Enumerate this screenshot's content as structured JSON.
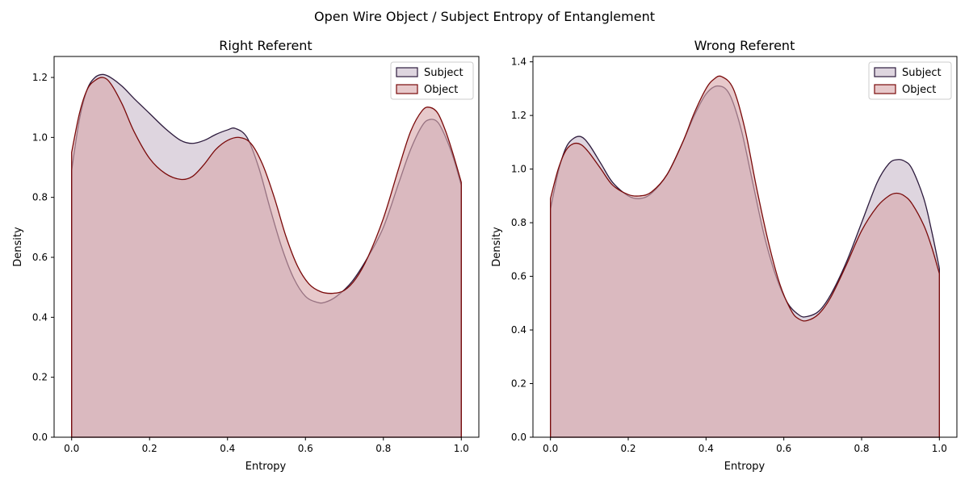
{
  "figure": {
    "title": "Open Wire Object / Subject Entropy of Entanglement"
  },
  "colors": {
    "subject_line": "#2d1b3d",
    "subject_fill": "#c9bccb",
    "object_line": "#7a0a0a",
    "object_fill": "#d9a8ab",
    "overlap_fill": "#b59499"
  },
  "chart_data": [
    {
      "type": "area",
      "title": "Right Referent",
      "xlabel": "Entropy",
      "ylabel": "Density",
      "xlim": [
        0.0,
        1.0
      ],
      "ylim": [
        0.0,
        1.27
      ],
      "xticks": [
        0.0,
        0.2,
        0.4,
        0.6,
        0.8,
        1.0
      ],
      "xtick_labels": [
        "0.0",
        "0.2",
        "0.4",
        "0.6",
        "0.8",
        "1.0"
      ],
      "yticks": [
        0.0,
        0.2,
        0.4,
        0.6,
        0.8,
        1.0,
        1.2
      ],
      "ytick_labels": [
        "0.0",
        "0.2",
        "0.4",
        "0.6",
        "0.8",
        "1.0",
        "1.2"
      ],
      "legend": "top-right",
      "grid": false,
      "series": [
        {
          "name": "Subject",
          "x": [
            0.0,
            0.02,
            0.04,
            0.06,
            0.08,
            0.1,
            0.13,
            0.16,
            0.2,
            0.24,
            0.28,
            0.31,
            0.34,
            0.37,
            0.4,
            0.42,
            0.45,
            0.48,
            0.51,
            0.54,
            0.57,
            0.6,
            0.63,
            0.65,
            0.68,
            0.72,
            0.76,
            0.8,
            0.84,
            0.87,
            0.9,
            0.92,
            0.94,
            0.96,
            0.98,
            1.0
          ],
          "y": [
            0.89,
            1.06,
            1.16,
            1.2,
            1.21,
            1.2,
            1.17,
            1.13,
            1.08,
            1.03,
            0.99,
            0.98,
            0.99,
            1.01,
            1.025,
            1.03,
            1.0,
            0.9,
            0.76,
            0.63,
            0.53,
            0.47,
            0.45,
            0.45,
            0.47,
            0.52,
            0.6,
            0.7,
            0.85,
            0.96,
            1.04,
            1.06,
            1.05,
            1.0,
            0.93,
            0.84
          ]
        },
        {
          "name": "Object",
          "x": [
            0.0,
            0.02,
            0.04,
            0.06,
            0.08,
            0.1,
            0.13,
            0.16,
            0.2,
            0.24,
            0.28,
            0.31,
            0.34,
            0.37,
            0.4,
            0.43,
            0.46,
            0.49,
            0.52,
            0.55,
            0.58,
            0.61,
            0.64,
            0.67,
            0.7,
            0.73,
            0.76,
            0.8,
            0.84,
            0.87,
            0.9,
            0.92,
            0.94,
            0.96,
            0.98,
            1.0
          ],
          "y": [
            0.95,
            1.08,
            1.16,
            1.19,
            1.2,
            1.18,
            1.11,
            1.02,
            0.93,
            0.88,
            0.86,
            0.87,
            0.91,
            0.96,
            0.99,
            1.0,
            0.98,
            0.91,
            0.8,
            0.67,
            0.57,
            0.51,
            0.485,
            0.48,
            0.49,
            0.53,
            0.6,
            0.73,
            0.9,
            1.02,
            1.09,
            1.1,
            1.08,
            1.02,
            0.94,
            0.85
          ]
        }
      ]
    },
    {
      "type": "area",
      "title": "Wrong Referent",
      "xlabel": "Entropy",
      "ylabel": "Density",
      "xlim": [
        0.0,
        1.0
      ],
      "ylim": [
        0.0,
        1.42
      ],
      "xticks": [
        0.0,
        0.2,
        0.4,
        0.6,
        0.8,
        1.0
      ],
      "xtick_labels": [
        "0.0",
        "0.2",
        "0.4",
        "0.6",
        "0.8",
        "1.0"
      ],
      "yticks": [
        0.0,
        0.2,
        0.4,
        0.6,
        0.8,
        1.0,
        1.2,
        1.4
      ],
      "ytick_labels": [
        "0.0",
        "0.2",
        "0.4",
        "0.6",
        "0.8",
        "1.0",
        "1.2",
        "1.4"
      ],
      "legend": "top-right",
      "grid": false,
      "series": [
        {
          "name": "Subject",
          "x": [
            0.0,
            0.02,
            0.04,
            0.06,
            0.08,
            0.1,
            0.13,
            0.16,
            0.2,
            0.23,
            0.26,
            0.3,
            0.34,
            0.37,
            0.4,
            0.43,
            0.46,
            0.49,
            0.52,
            0.55,
            0.58,
            0.61,
            0.64,
            0.66,
            0.69,
            0.72,
            0.76,
            0.8,
            0.84,
            0.87,
            0.89,
            0.91,
            0.93,
            0.96,
            0.98,
            1.0
          ],
          "y": [
            0.85,
            0.99,
            1.08,
            1.115,
            1.12,
            1.09,
            1.02,
            0.95,
            0.9,
            0.89,
            0.91,
            0.98,
            1.1,
            1.2,
            1.28,
            1.31,
            1.28,
            1.15,
            0.95,
            0.75,
            0.6,
            0.5,
            0.455,
            0.45,
            0.47,
            0.53,
            0.65,
            0.8,
            0.95,
            1.02,
            1.035,
            1.03,
            1.0,
            0.89,
            0.77,
            0.63
          ]
        },
        {
          "name": "Object",
          "x": [
            0.0,
            0.02,
            0.04,
            0.06,
            0.08,
            0.1,
            0.13,
            0.16,
            0.2,
            0.23,
            0.26,
            0.3,
            0.34,
            0.37,
            0.4,
            0.42,
            0.44,
            0.47,
            0.5,
            0.53,
            0.56,
            0.59,
            0.62,
            0.64,
            0.66,
            0.69,
            0.72,
            0.76,
            0.8,
            0.84,
            0.87,
            0.89,
            0.91,
            0.93,
            0.96,
            0.98,
            1.0
          ],
          "y": [
            0.89,
            1.0,
            1.07,
            1.095,
            1.09,
            1.06,
            1.0,
            0.94,
            0.905,
            0.9,
            0.915,
            0.98,
            1.1,
            1.21,
            1.3,
            1.335,
            1.345,
            1.3,
            1.15,
            0.93,
            0.73,
            0.57,
            0.47,
            0.44,
            0.435,
            0.46,
            0.52,
            0.64,
            0.77,
            0.86,
            0.9,
            0.91,
            0.9,
            0.87,
            0.79,
            0.71,
            0.61
          ]
        }
      ]
    }
  ]
}
